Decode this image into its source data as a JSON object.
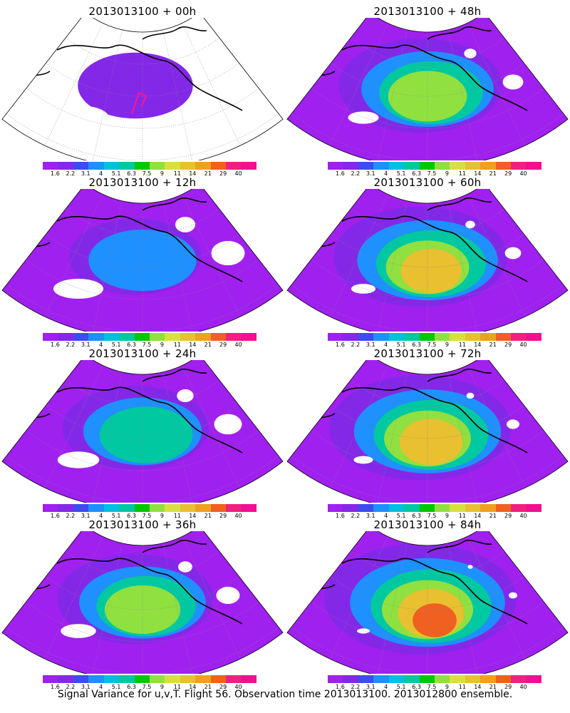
{
  "panels": [
    {
      "title": "2013013100 + 00h",
      "intensity": 0.15,
      "track": true
    },
    {
      "title": "2013013100 + 48h",
      "intensity": 0.62,
      "track": false
    },
    {
      "title": "2013013100 + 12h",
      "intensity": 0.32,
      "track": false
    },
    {
      "title": "2013013100 + 60h",
      "intensity": 0.72,
      "track": false
    },
    {
      "title": "2013013100 + 24h",
      "intensity": 0.45,
      "track": false
    },
    {
      "title": "2013013100 + 72h",
      "intensity": 0.8,
      "track": false
    },
    {
      "title": "2013013100 + 36h",
      "intensity": 0.55,
      "track": false
    },
    {
      "title": "2013013100 + 84h",
      "intensity": 0.9,
      "track": false
    }
  ],
  "colorbar": {
    "labels": [
      "1.6",
      "2.2",
      "3.1",
      "4",
      "5.1",
      "6.3",
      "7.5",
      "9",
      "11",
      "14",
      "21",
      "29",
      "40"
    ],
    "colors": [
      "#a020f0",
      "#8428e8",
      "#3c4cf0",
      "#1e90ff",
      "#00c0e0",
      "#00c8a0",
      "#00c800",
      "#90e040",
      "#d8e040",
      "#e8c030",
      "#f0a020",
      "#f06020",
      "#f02080",
      "#f01090"
    ]
  },
  "caption": "Signal Variance for u,v,T. Flight 56. Observation time 2013013100. 2013012800 ensemble.",
  "colors": {
    "land_outline": "#000000",
    "grid": "#888888",
    "track": "#ff1493",
    "no_data": "#ffffff"
  }
}
